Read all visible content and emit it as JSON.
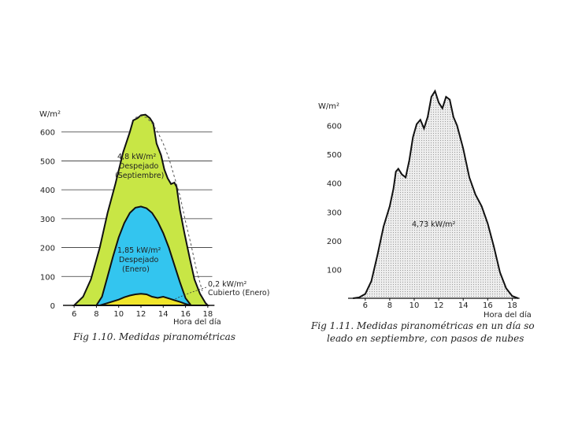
{
  "chart_data": [
    {
      "type": "area",
      "caption": "Fig 1.10.  Medidas piranométricas",
      "xlabel": "Hora del día",
      "ylabel": "W/m²",
      "xlim": [
        5,
        19
      ],
      "ylim": [
        0,
        700
      ],
      "xticks": [
        "6",
        "8",
        "10",
        "12",
        "14",
        "16",
        "18"
      ],
      "yticks": [
        "0",
        "100",
        "200",
        "300",
        "400",
        "500",
        "600"
      ],
      "background": "#ffffff",
      "series": [
        {
          "label_lines": [
            "4,8 kW/m²",
            "Despejado",
            "(Septiembre)"
          ],
          "color": "#c8e645",
          "x": [
            6,
            6.8,
            7.5,
            8.3,
            9,
            9.7,
            10.4,
            11,
            11.3,
            11.7,
            12,
            12.4,
            12.8,
            13.1,
            13.4,
            13.8,
            14.1,
            14.4,
            14.7,
            15.0,
            15.2,
            15.5,
            15.9,
            16.4,
            16.8,
            17.3,
            17.8,
            18
          ],
          "y": [
            0,
            30,
            90,
            200,
            320,
            420,
            530,
            600,
            640,
            648,
            658,
            660,
            648,
            630,
            560,
            520,
            470,
            440,
            420,
            425,
            410,
            330,
            250,
            160,
            90,
            40,
            8,
            0
          ]
        },
        {
          "label_lines": [
            "1,85 kW/m²",
            "Despejado",
            "(Enero)"
          ],
          "color": "#33c5ef",
          "x": [
            8,
            8.5,
            9,
            9.5,
            10,
            10.5,
            11,
            11.5,
            12,
            12.5,
            13,
            13.5,
            14,
            14.5,
            15,
            15.5,
            16,
            16.5
          ],
          "y": [
            0,
            30,
            100,
            170,
            235,
            285,
            320,
            338,
            342,
            336,
            320,
            290,
            250,
            200,
            140,
            80,
            25,
            0
          ]
        },
        {
          "label_lines": [
            "0,2 kW/m²",
            "Cubierto (Enero)"
          ],
          "color": "#f0e52a",
          "x": [
            8.3,
            9,
            10,
            10.5,
            11,
            11.5,
            12,
            12.5,
            13,
            13.5,
            14,
            14.5,
            15,
            15.5,
            16,
            16.5
          ],
          "y": [
            0,
            8,
            20,
            28,
            34,
            38,
            40,
            38,
            30,
            26,
            30,
            24,
            18,
            12,
            5,
            0
          ]
        }
      ],
      "envelope": {
        "style": "dashed",
        "x": [
          11.5,
          12,
          12.5,
          13,
          13.5,
          14,
          14.5,
          15,
          15.5,
          16,
          16.5,
          17,
          17.5
        ],
        "y": [
          650,
          655,
          650,
          630,
          600,
          560,
          510,
          445,
          380,
          290,
          210,
          120,
          50
        ]
      }
    },
    {
      "type": "area",
      "caption_lines": [
        "Fig 1.11.  Medidas piranométricas en un día so",
        "leado en septiembre, con pasos de nubes"
      ],
      "xlabel": "Hora del día",
      "ylabel": "W/m²",
      "xlim": [
        4.6,
        19
      ],
      "ylim": [
        0,
        730
      ],
      "xticks": [
        "6",
        "8",
        "10",
        "12",
        "14",
        "16",
        "18"
      ],
      "yticks": [
        "100",
        "200",
        "300",
        "400",
        "500",
        "600"
      ],
      "fill": "#dcdcdc",
      "series": [
        {
          "label_lines": [
            "4,73 kW/m²"
          ],
          "x": [
            5,
            5.5,
            6,
            6.5,
            7,
            7.5,
            8,
            8.3,
            8.5,
            8.7,
            9,
            9.3,
            9.6,
            9.9,
            10.2,
            10.5,
            10.8,
            11.1,
            11.4,
            11.7,
            12,
            12.3,
            12.6,
            12.9,
            13.2,
            13.5,
            14,
            14.5,
            15,
            15.5,
            16,
            16.5,
            17,
            17.5,
            18,
            18.5
          ],
          "y": [
            0,
            3,
            15,
            60,
            150,
            250,
            320,
            380,
            440,
            450,
            430,
            420,
            480,
            560,
            605,
            620,
            590,
            630,
            700,
            720,
            680,
            660,
            700,
            690,
            630,
            600,
            520,
            420,
            360,
            320,
            260,
            180,
            90,
            35,
            8,
            0
          ]
        }
      ]
    }
  ]
}
